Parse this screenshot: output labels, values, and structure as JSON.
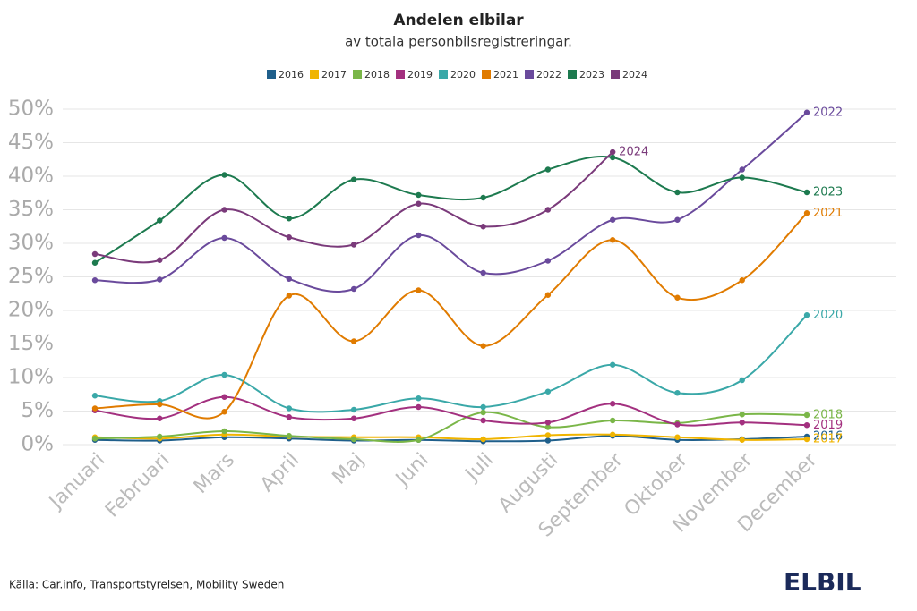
{
  "chart_data": {
    "type": "line",
    "title": "Andelen elbilar",
    "subtitle": "av totala personbilsregistreringar.",
    "source": "Källa: Car.info, Transportstyrelsen, Mobility Sweden",
    "logo": "ELBIL",
    "categories": [
      "Januari",
      "Februari",
      "Mars",
      "April",
      "Maj",
      "Juni",
      "Juli",
      "Augusti",
      "September",
      "Oktober",
      "November",
      "December"
    ],
    "ylim": [
      0,
      50
    ],
    "yticks": [
      {
        "value": 0,
        "label": "0%"
      },
      {
        "value": 5,
        "label": "5%"
      },
      {
        "value": 10,
        "label": "10%"
      },
      {
        "value": 15,
        "label": "15%"
      },
      {
        "value": 20,
        "label": "20%"
      },
      {
        "value": 25,
        "label": "25%"
      },
      {
        "value": 30,
        "label": "30%"
      },
      {
        "value": 35,
        "label": "35%"
      },
      {
        "value": 40,
        "label": "40%"
      },
      {
        "value": 45,
        "label": "45%"
      },
      {
        "value": 50,
        "label": "50%"
      }
    ],
    "grid": true,
    "legend": "top",
    "series": [
      {
        "name": "2016",
        "color": "#1f5f8b",
        "values": [
          0.7,
          0.6,
          1.1,
          0.9,
          0.6,
          0.7,
          0.5,
          0.6,
          1.3,
          0.7,
          0.8,
          1.2
        ]
      },
      {
        "name": "2017",
        "color": "#f0b400",
        "values": [
          1.1,
          0.9,
          1.5,
          1.2,
          1.1,
          1.1,
          0.8,
          1.4,
          1.5,
          1.1,
          0.7,
          0.8
        ]
      },
      {
        "name": "2018",
        "color": "#7ab648",
        "values": [
          0.9,
          1.2,
          2.0,
          1.3,
          0.8,
          0.7,
          4.8,
          2.6,
          3.6,
          3.2,
          4.5,
          4.4
        ]
      },
      {
        "name": "2019",
        "color": "#a3307f",
        "values": [
          5.1,
          3.9,
          7.1,
          4.1,
          3.9,
          5.6,
          3.6,
          3.3,
          6.1,
          3.0,
          3.3,
          2.9
        ]
      },
      {
        "name": "2020",
        "color": "#3aa8a8",
        "values": [
          7.3,
          6.5,
          10.4,
          5.4,
          5.2,
          6.9,
          5.6,
          7.9,
          11.9,
          7.7,
          9.6,
          19.3
        ]
      },
      {
        "name": "2021",
        "color": "#e07b00",
        "values": [
          5.4,
          6.0,
          4.9,
          22.2,
          15.4,
          23.0,
          14.7,
          22.3,
          30.5,
          21.9,
          24.5,
          34.5
        ]
      },
      {
        "name": "2022",
        "color": "#6a4a9c",
        "values": [
          24.5,
          24.6,
          30.8,
          24.7,
          23.2,
          31.2,
          25.6,
          27.4,
          33.5,
          33.5,
          41.0,
          49.5
        ]
      },
      {
        "name": "2023",
        "color": "#1d7a4f",
        "values": [
          27.1,
          33.4,
          40.2,
          33.7,
          39.5,
          37.2,
          36.8,
          41.0,
          42.8,
          37.6,
          39.8,
          37.6
        ]
      },
      {
        "name": "2024",
        "color": "#7a3a7a",
        "values": [
          28.4,
          27.5,
          35.0,
          30.9,
          29.8,
          35.9,
          32.5,
          35.0,
          43.6,
          null,
          null,
          null
        ]
      }
    ]
  }
}
